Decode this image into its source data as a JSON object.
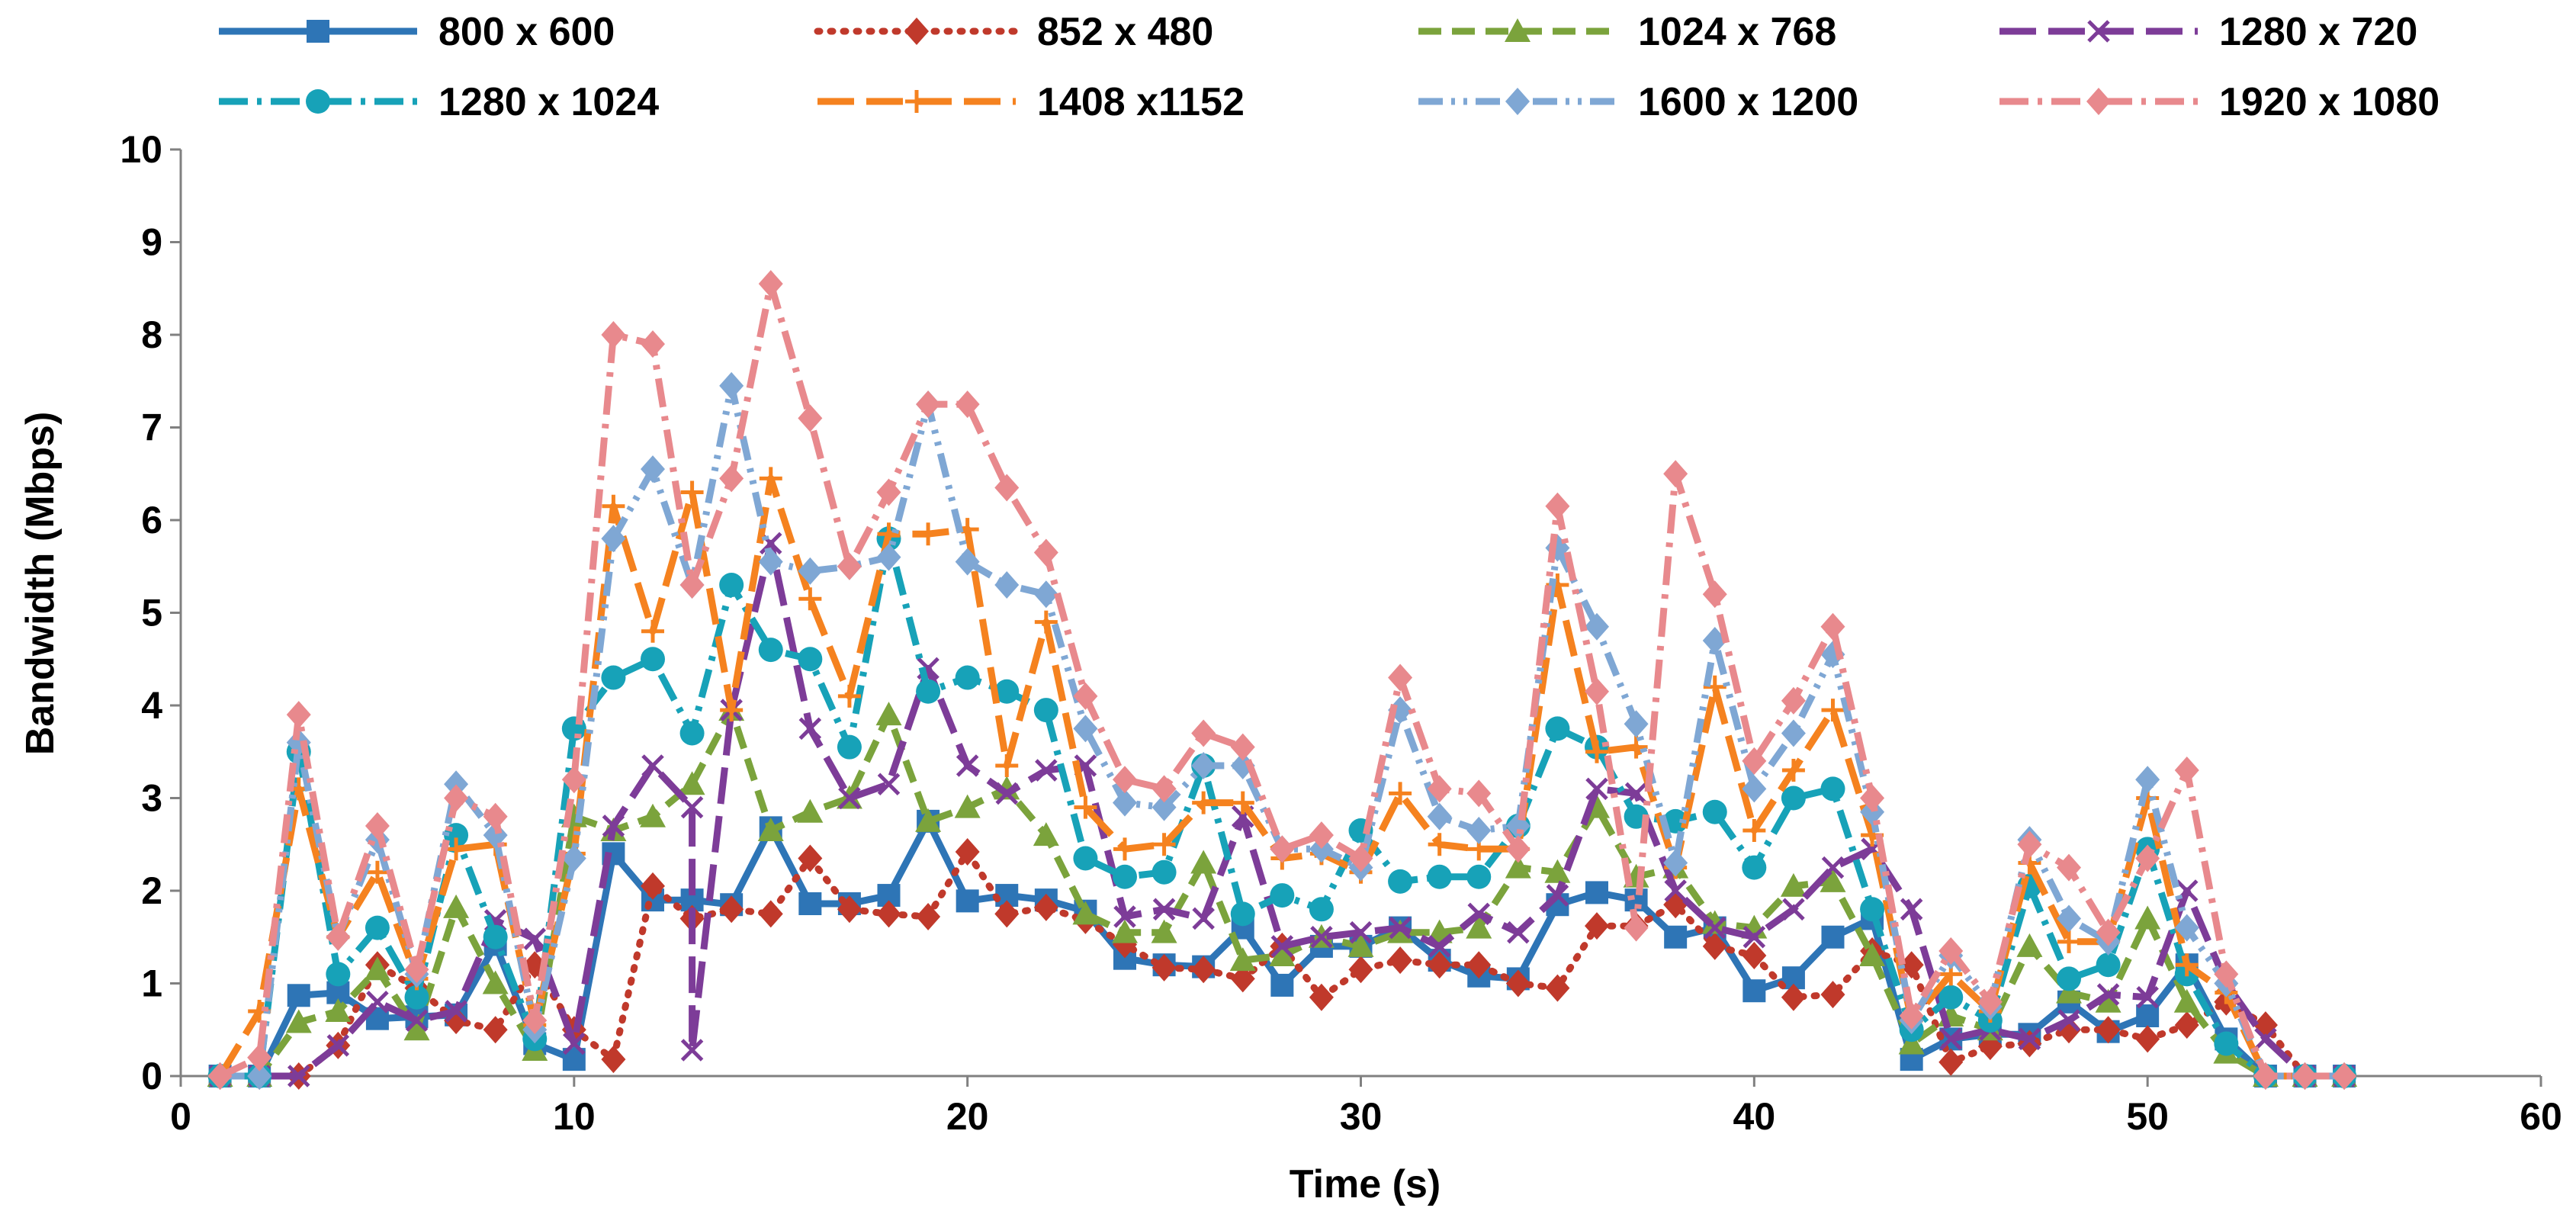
{
  "chart_data": {
    "type": "line",
    "title": "",
    "xlabel": "Time (s)",
    "ylabel": "Bandwidth (Mbps)",
    "xlim": [
      0,
      60
    ],
    "ylim": [
      0,
      10
    ],
    "xticks": [
      0,
      10,
      20,
      30,
      40,
      50,
      60
    ],
    "yticks": [
      0,
      1,
      2,
      3,
      4,
      5,
      6,
      7,
      8,
      9,
      10
    ],
    "grid": false,
    "legend_position": "top",
    "series": [
      {
        "name": "800 x 600",
        "color": "#2E75B6",
        "marker": "square",
        "dash": "solid",
        "x": [
          1,
          2,
          3,
          4,
          5,
          6,
          7,
          8,
          9,
          10,
          11,
          12,
          13,
          14,
          15,
          16,
          17,
          18,
          19,
          20,
          21,
          22,
          23,
          24,
          25,
          26,
          27,
          28,
          29,
          30,
          31,
          32,
          33,
          34,
          35,
          36,
          37,
          38,
          39,
          40,
          41,
          42,
          43,
          44,
          45,
          46,
          47,
          48,
          49,
          50,
          51,
          52,
          53,
          54,
          55
        ],
        "y": [
          0,
          0,
          0.87,
          0.9,
          0.62,
          0.64,
          0.66,
          1.42,
          0.35,
          0.18,
          2.4,
          1.9,
          1.9,
          1.85,
          2.68,
          1.86,
          1.86,
          1.95,
          2.75,
          1.89,
          1.95,
          1.9,
          1.78,
          1.27,
          1.2,
          1.18,
          1.6,
          0.98,
          1.4,
          1.4,
          1.6,
          1.25,
          1.08,
          1.05,
          1.85,
          1.98,
          1.9,
          1.5,
          1.6,
          0.92,
          1.06,
          1.5,
          1.7,
          0.18,
          0.4,
          0.45,
          0.45,
          0.8,
          0.48,
          0.65,
          1.2,
          0.4,
          0,
          0,
          0
        ]
      },
      {
        "name": "852 x 480",
        "color": "#C0392B",
        "marker": "diamond",
        "dash": "dot",
        "x": [
          1,
          2,
          3,
          4,
          5,
          6,
          7,
          8,
          9,
          10,
          11,
          12,
          13,
          14,
          15,
          16,
          17,
          18,
          19,
          20,
          21,
          22,
          23,
          24,
          25,
          26,
          27,
          28,
          29,
          30,
          31,
          32,
          33,
          34,
          35,
          36,
          37,
          38,
          39,
          40,
          41,
          42,
          43,
          44,
          45,
          46,
          47,
          48,
          49,
          50,
          51,
          52,
          53,
          54,
          55
        ],
        "y": [
          0,
          0,
          0,
          0.33,
          1.2,
          0.95,
          0.6,
          0.5,
          1.2,
          0.5,
          0.18,
          2.05,
          1.7,
          1.8,
          1.75,
          2.35,
          1.8,
          1.75,
          1.72,
          2.42,
          1.75,
          1.82,
          1.68,
          1.42,
          1.17,
          1.15,
          1.05,
          1.4,
          0.85,
          1.15,
          1.25,
          1.2,
          1.2,
          1.0,
          0.95,
          1.62,
          1.62,
          1.85,
          1.4,
          1.3,
          0.85,
          0.88,
          1.35,
          1.2,
          0.15,
          0.32,
          0.35,
          0.5,
          0.5,
          0.4,
          0.55,
          0.8,
          0.55,
          0,
          0
        ]
      },
      {
        "name": "1024 x 768",
        "color": "#7BA33C",
        "marker": "triangle",
        "dash": "dash",
        "x": [
          1,
          2,
          3,
          4,
          5,
          6,
          7,
          8,
          9,
          10,
          11,
          12,
          13,
          14,
          15,
          16,
          17,
          18,
          19,
          20,
          21,
          22,
          23,
          24,
          25,
          26,
          27,
          28,
          29,
          30,
          31,
          32,
          33,
          34,
          35,
          36,
          37,
          38,
          39,
          40,
          41,
          42,
          43,
          44,
          45,
          46,
          47,
          48,
          49,
          50,
          51,
          52,
          53,
          54,
          55
        ],
        "y": [
          0,
          0,
          0.58,
          0.7,
          1.15,
          0.5,
          1.82,
          1.0,
          0.28,
          2.8,
          2.65,
          2.8,
          3.15,
          3.95,
          2.65,
          2.85,
          3.0,
          3.9,
          2.75,
          2.9,
          3.1,
          2.6,
          1.75,
          1.55,
          1.55,
          2.3,
          1.25,
          1.3,
          1.5,
          1.4,
          1.55,
          1.55,
          1.6,
          2.25,
          2.2,
          2.9,
          2.15,
          2.25,
          1.65,
          1.6,
          2.05,
          2.1,
          1.3,
          0.35,
          0.65,
          0.5,
          1.4,
          0.9,
          0.8,
          1.7,
          0.8,
          0.25,
          0,
          0,
          0
        ]
      },
      {
        "name": "1280 x 720",
        "color": "#7D3C98",
        "marker": "x",
        "dash": "longdash",
        "x": [
          1,
          2,
          3,
          4,
          5,
          6,
          7,
          8,
          9,
          10,
          11,
          12,
          13,
          13,
          14,
          15,
          16,
          17,
          18,
          19,
          20,
          21,
          22,
          23,
          24,
          25,
          26,
          27,
          28,
          29,
          30,
          31,
          32,
          33,
          34,
          35,
          36,
          37,
          38,
          39,
          40,
          41,
          42,
          43,
          44,
          45,
          46,
          47,
          48,
          49,
          50,
          51,
          52,
          53,
          54,
          55
        ],
        "y": [
          0,
          0,
          0,
          0.33,
          0.8,
          0.6,
          0.7,
          1.68,
          1.48,
          0.35,
          2.7,
          3.35,
          2.9,
          0.28,
          3.95,
          5.75,
          3.75,
          3.0,
          3.15,
          4.4,
          3.35,
          3.05,
          3.3,
          3.35,
          1.72,
          1.8,
          1.7,
          2.8,
          1.4,
          1.5,
          1.55,
          1.6,
          1.4,
          1.75,
          1.55,
          1.95,
          3.1,
          3.05,
          2.0,
          1.6,
          1.5,
          1.8,
          2.25,
          2.45,
          1.8,
          0.4,
          0.5,
          0.4,
          0.6,
          0.88,
          0.85,
          2.0,
          1.0,
          0.4,
          0,
          0
        ]
      },
      {
        "name": "1280 x 1024",
        "color": "#17A2B8",
        "marker": "circle",
        "dash": "dashdot",
        "x": [
          1,
          2,
          3,
          4,
          5,
          6,
          7,
          8,
          9,
          10,
          11,
          12,
          13,
          14,
          15,
          16,
          17,
          18,
          19,
          20,
          21,
          22,
          23,
          24,
          25,
          26,
          27,
          28,
          29,
          30,
          31,
          32,
          33,
          34,
          35,
          36,
          37,
          38,
          39,
          40,
          41,
          42,
          43,
          44,
          45,
          46,
          47,
          48,
          49,
          50,
          51,
          52,
          53,
          54,
          55
        ],
        "y": [
          0,
          0,
          3.5,
          1.1,
          1.6,
          0.85,
          2.6,
          1.5,
          0.4,
          3.75,
          4.3,
          4.5,
          3.7,
          5.3,
          4.6,
          4.5,
          3.55,
          5.8,
          4.15,
          4.3,
          4.15,
          3.95,
          2.35,
          2.15,
          2.2,
          3.35,
          1.75,
          1.95,
          1.8,
          2.65,
          2.1,
          2.15,
          2.15,
          2.7,
          3.75,
          3.55,
          2.8,
          2.75,
          2.85,
          2.25,
          3.0,
          3.1,
          1.8,
          0.5,
          0.85,
          0.6,
          2.05,
          1.05,
          1.2,
          2.45,
          1.1,
          0.35,
          0,
          0,
          0
        ]
      },
      {
        "name": "1408 x1152",
        "color": "#F5821F",
        "marker": "plus",
        "dash": "longdash",
        "x": [
          1,
          2,
          3,
          4,
          5,
          6,
          7,
          8,
          9,
          10,
          11,
          12,
          13,
          14,
          15,
          16,
          17,
          18,
          19,
          20,
          21,
          22,
          23,
          24,
          25,
          26,
          27,
          28,
          29,
          30,
          31,
          32,
          33,
          34,
          35,
          36,
          37,
          38,
          39,
          40,
          41,
          42,
          43,
          44,
          45,
          46,
          47,
          48,
          49,
          50,
          51,
          52,
          53,
          54,
          55
        ],
        "y": [
          0,
          0.7,
          3.1,
          1.5,
          2.2,
          1.05,
          2.45,
          2.5,
          0.55,
          2.4,
          6.15,
          4.8,
          6.3,
          3.95,
          6.45,
          5.15,
          4.1,
          5.85,
          5.85,
          5.9,
          3.35,
          4.9,
          2.9,
          2.45,
          2.5,
          2.95,
          2.95,
          2.35,
          2.4,
          2.2,
          3.05,
          2.5,
          2.45,
          2.45,
          5.3,
          3.5,
          3.55,
          2.25,
          4.2,
          2.65,
          3.3,
          3.95,
          2.6,
          0.6,
          1.1,
          0.7,
          2.3,
          1.45,
          1.45,
          3.0,
          1.2,
          0.9,
          0,
          0,
          0
        ]
      },
      {
        "name": "1600 x 1200",
        "color": "#7FA7D4",
        "marker": "diamond",
        "dash": "dashdotdot",
        "x": [
          1,
          2,
          3,
          4,
          5,
          6,
          7,
          8,
          9,
          10,
          11,
          12,
          13,
          14,
          15,
          16,
          17,
          18,
          19,
          20,
          21,
          22,
          23,
          24,
          25,
          26,
          27,
          28,
          29,
          30,
          31,
          32,
          33,
          34,
          35,
          36,
          37,
          38,
          39,
          40,
          41,
          42,
          43,
          44,
          45,
          46,
          47,
          48,
          49,
          50,
          51,
          52,
          53,
          54,
          55
        ],
        "y": [
          0,
          0,
          3.6,
          1.5,
          2.55,
          1.1,
          3.15,
          2.6,
          0.5,
          2.35,
          5.8,
          6.55,
          5.3,
          7.45,
          5.55,
          5.45,
          5.5,
          5.6,
          7.25,
          5.55,
          5.3,
          5.2,
          3.75,
          2.95,
          2.9,
          3.35,
          3.35,
          2.45,
          2.45,
          2.25,
          3.95,
          2.8,
          2.65,
          2.7,
          5.7,
          4.85,
          3.8,
          2.3,
          4.7,
          3.1,
          3.7,
          4.55,
          2.85,
          0.6,
          1.3,
          0.75,
          2.55,
          1.7,
          1.45,
          3.2,
          1.6,
          1.0,
          0,
          0,
          0
        ]
      },
      {
        "name": "1920 x 1080",
        "color": "#E8898D",
        "marker": "diamond",
        "dash": "dashdot",
        "x": [
          1,
          2,
          3,
          4,
          5,
          6,
          7,
          8,
          9,
          10,
          11,
          12,
          13,
          14,
          15,
          16,
          17,
          18,
          19,
          20,
          21,
          22,
          23,
          24,
          25,
          26,
          27,
          28,
          29,
          30,
          31,
          32,
          33,
          34,
          35,
          36,
          37,
          38,
          39,
          40,
          41,
          42,
          43,
          44,
          45,
          46,
          47,
          48,
          49,
          50,
          51,
          52,
          53,
          54,
          55
        ],
        "y": [
          0,
          0.2,
          3.9,
          1.5,
          2.7,
          1.15,
          3.0,
          2.8,
          0.6,
          3.2,
          8.0,
          7.9,
          5.3,
          6.45,
          8.55,
          7.1,
          5.5,
          6.3,
          7.25,
          7.25,
          6.35,
          5.65,
          4.1,
          3.2,
          3.1,
          3.7,
          3.55,
          2.45,
          2.6,
          2.35,
          4.3,
          3.1,
          3.05,
          2.45,
          6.15,
          4.15,
          1.6,
          6.5,
          5.2,
          3.4,
          4.05,
          4.85,
          3.0,
          0.65,
          1.35,
          0.8,
          2.5,
          2.25,
          1.55,
          2.35,
          3.3,
          1.1,
          0,
          0,
          0
        ]
      }
    ]
  }
}
